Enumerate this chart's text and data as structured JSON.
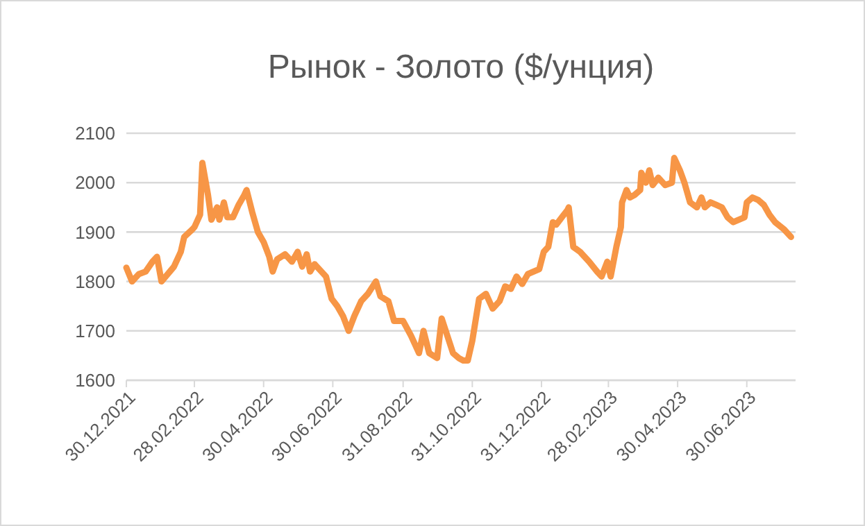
{
  "chart_data": {
    "type": "line",
    "title": "Рынок - Золото ($/унция)",
    "x": [
      "2021-12-30",
      "2022-01-04",
      "2022-01-10",
      "2022-01-16",
      "2022-01-22",
      "2022-01-26",
      "2022-01-30",
      "2022-02-10",
      "2022-02-16",
      "2022-02-19",
      "2022-02-26",
      "2022-02-28",
      "2022-03-05",
      "2022-03-07",
      "2022-03-12",
      "2022-03-15",
      "2022-03-20",
      "2022-03-22",
      "2022-03-26",
      "2022-03-29",
      "2022-04-03",
      "2022-04-08",
      "2022-04-13",
      "2022-04-15",
      "2022-04-20",
      "2022-04-25",
      "2022-04-30",
      "2022-05-05",
      "2022-05-08",
      "2022-05-12",
      "2022-05-19",
      "2022-05-25",
      "2022-05-30",
      "2022-06-03",
      "2022-06-07",
      "2022-06-10",
      "2022-06-14",
      "2022-06-24",
      "2022-06-29",
      "2022-07-04",
      "2022-07-09",
      "2022-07-14",
      "2022-07-19",
      "2022-07-25",
      "2022-07-31",
      "2022-08-07",
      "2022-08-11",
      "2022-08-18",
      "2022-08-23",
      "2022-08-31",
      "2022-09-07",
      "2022-09-14",
      "2022-09-18",
      "2022-09-23",
      "2022-09-30",
      "2022-10-04",
      "2022-10-09",
      "2022-10-14",
      "2022-10-19",
      "2022-10-23",
      "2022-10-27",
      "2022-10-31",
      "2022-11-06",
      "2022-11-12",
      "2022-11-18",
      "2022-11-24",
      "2022-11-29",
      "2022-12-04",
      "2022-12-09",
      "2022-12-14",
      "2022-12-19",
      "2022-12-29",
      "2023-01-02",
      "2023-01-06",
      "2023-01-10",
      "2023-01-13",
      "2023-01-18",
      "2023-01-23",
      "2023-01-24",
      "2023-01-28",
      "2023-02-03",
      "2023-02-11",
      "2023-02-18",
      "2023-02-22",
      "2023-02-27",
      "2023-03-02",
      "2023-03-07",
      "2023-03-11",
      "2023-03-12",
      "2023-03-16",
      "2023-03-19",
      "2023-03-23",
      "2023-03-28",
      "2023-03-29",
      "2023-04-02",
      "2023-04-05",
      "2023-04-08",
      "2023-04-13",
      "2023-04-19",
      "2023-04-25",
      "2023-04-27",
      "2023-05-02",
      "2023-05-06",
      "2023-05-11",
      "2023-05-17",
      "2023-05-21",
      "2023-05-24",
      "2023-05-29",
      "2023-06-03",
      "2023-06-08",
      "2023-06-13",
      "2023-06-18",
      "2023-06-23",
      "2023-06-28",
      "2023-06-30",
      "2023-07-05",
      "2023-07-10",
      "2023-07-15",
      "2023-07-20",
      "2023-07-25",
      "2023-08-02",
      "2023-08-08"
    ],
    "series": [
      {
        "color": "#f79646",
        "values": [
          1828,
          1800,
          1815,
          1820,
          1840,
          1850,
          1800,
          1830,
          1860,
          1890,
          1905,
          1910,
          1935,
          2040,
          1975,
          1925,
          1950,
          1925,
          1960,
          1930,
          1930,
          1955,
          1975,
          1985,
          1940,
          1900,
          1880,
          1850,
          1820,
          1845,
          1855,
          1840,
          1860,
          1830,
          1855,
          1820,
          1835,
          1810,
          1765,
          1750,
          1730,
          1700,
          1730,
          1760,
          1775,
          1800,
          1770,
          1760,
          1720,
          1720,
          1690,
          1655,
          1700,
          1655,
          1645,
          1725,
          1690,
          1655,
          1645,
          1640,
          1640,
          1680,
          1765,
          1775,
          1745,
          1760,
          1790,
          1785,
          1810,
          1795,
          1815,
          1825,
          1860,
          1870,
          1920,
          1915,
          1930,
          1945,
          1950,
          1870,
          1860,
          1840,
          1820,
          1810,
          1840,
          1810,
          1870,
          1910,
          1960,
          1985,
          1970,
          1975,
          1985,
          2020,
          2000,
          2025,
          1995,
          2010,
          1995,
          2000,
          2050,
          2025,
          2000,
          1960,
          1950,
          1970,
          1950,
          1960,
          1955,
          1950,
          1930,
          1920,
          1925,
          1930,
          1960,
          1970,
          1965,
          1955,
          1935,
          1920,
          1905,
          1890
        ]
      }
    ],
    "xlim": [
      "2021-12-30",
      "2023-08-12"
    ],
    "xticks": [
      {
        "value": "2021-12-30",
        "label": "30.12.2021"
      },
      {
        "value": "2022-02-28",
        "label": "28.02.2022"
      },
      {
        "value": "2022-04-30",
        "label": "30.04.2022"
      },
      {
        "value": "2022-06-30",
        "label": "30.06.2022"
      },
      {
        "value": "2022-08-31",
        "label": "31.08.2022"
      },
      {
        "value": "2022-10-31",
        "label": "31.10.2022"
      },
      {
        "value": "2022-12-31",
        "label": "31.12.2022"
      },
      {
        "value": "2023-02-28",
        "label": "28.02.2023"
      },
      {
        "value": "2023-04-30",
        "label": "30.04.2023"
      },
      {
        "value": "2023-06-30",
        "label": "30.06.2023"
      }
    ],
    "ylim": [
      1600,
      2100
    ],
    "yticks": [
      1600,
      1700,
      1800,
      1900,
      2000,
      2100
    ],
    "grid": "y",
    "marker": "none",
    "line_style": "solid"
  }
}
